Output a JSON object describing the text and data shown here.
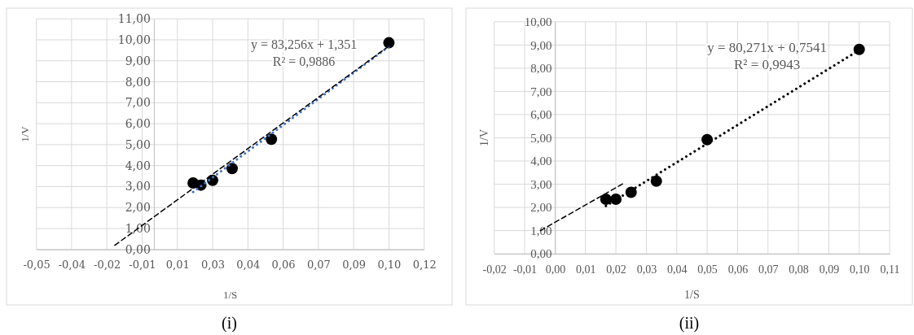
{
  "chart_data": [
    {
      "type": "scatter",
      "title": "(i)",
      "xlabel": "1/S",
      "ylabel": "1/V",
      "annotations": [
        "y = 83,256x + 1,351",
        "R² = 0,9886"
      ],
      "grid": true,
      "xlim": [
        -0.05,
        0.115
      ],
      "xticks": [
        {
          "value": -0.05,
          "label": "-0,05"
        },
        {
          "value": -0.035,
          "label": "-0,04"
        },
        {
          "value": -0.02,
          "label": "-0,02"
        },
        {
          "value": -0.005,
          "label": "-0,01"
        },
        {
          "value": 0.01,
          "label": "0,01"
        },
        {
          "value": 0.025,
          "label": "0,03"
        },
        {
          "value": 0.04,
          "label": "0,04"
        },
        {
          "value": 0.055,
          "label": "0,06"
        },
        {
          "value": 0.07,
          "label": "0,07"
        },
        {
          "value": 0.085,
          "label": "0,09"
        },
        {
          "value": 0.1,
          "label": "0,10"
        },
        {
          "value": 0.115,
          "label": "0,12"
        }
      ],
      "ylim": [
        0,
        11
      ],
      "yticks": [
        {
          "value": 0,
          "label": "0,00"
        },
        {
          "value": 1,
          "label": "1,00"
        },
        {
          "value": 2,
          "label": "2,00"
        },
        {
          "value": 3,
          "label": "3,00"
        },
        {
          "value": 4,
          "label": "4,00"
        },
        {
          "value": 5,
          "label": "5,00"
        },
        {
          "value": 6,
          "label": "6,00"
        },
        {
          "value": 7,
          "label": "7,00"
        },
        {
          "value": 8,
          "label": "8,00"
        },
        {
          "value": 9,
          "label": "9,00"
        },
        {
          "value": 10,
          "label": "10,00"
        },
        {
          "value": 11,
          "label": "11,00"
        }
      ],
      "series": [
        {
          "color": "#000000",
          "marker": "circle",
          "x": [
            0.0167,
            0.02,
            0.025,
            0.0333,
            0.05,
            0.1
          ],
          "values": [
            3.17,
            3.07,
            3.3,
            3.86,
            5.26,
            9.86
          ]
        },
        {
          "type": "line",
          "color": "#4472c4",
          "line_style": "dotted",
          "x": [
            0.0167,
            0.1
          ],
          "values": [
            2.74,
            9.68
          ]
        },
        {
          "type": "line",
          "color": "#000000",
          "line_style": "dashed",
          "x": [
            -0.0166,
            0.1
          ],
          "values": [
            0.2,
            9.7
          ]
        }
      ]
    },
    {
      "type": "scatter",
      "title": "(ii)",
      "xlabel": "1/S",
      "ylabel": "1/V",
      "annotations": [
        "y = 80,271x + 0,7541",
        "R² = 0,9943"
      ],
      "grid": true,
      "xlim": [
        -0.02,
        0.11
      ],
      "xticks": [
        {
          "value": -0.02,
          "label": "-0,02"
        },
        {
          "value": -0.01,
          "label": "-0,01"
        },
        {
          "value": 0,
          "label": "0,00"
        },
        {
          "value": 0.01,
          "label": "0,01"
        },
        {
          "value": 0.02,
          "label": "0,02"
        },
        {
          "value": 0.03,
          "label": "0,03"
        },
        {
          "value": 0.04,
          "label": "0,04"
        },
        {
          "value": 0.05,
          "label": "0,05"
        },
        {
          "value": 0.06,
          "label": "0,06"
        },
        {
          "value": 0.07,
          "label": "0,07"
        },
        {
          "value": 0.08,
          "label": "0,08"
        },
        {
          "value": 0.09,
          "label": "0,09"
        },
        {
          "value": 0.1,
          "label": "0,10"
        },
        {
          "value": 0.11,
          "label": "0,11"
        }
      ],
      "ylim": [
        0,
        10
      ],
      "yticks": [
        {
          "value": 0,
          "label": "0,00"
        },
        {
          "value": 1,
          "label": "1,00"
        },
        {
          "value": 2,
          "label": "2,00"
        },
        {
          "value": 3,
          "label": "3,00"
        },
        {
          "value": 4,
          "label": "4,00"
        },
        {
          "value": 5,
          "label": "5,00"
        },
        {
          "value": 6,
          "label": "6,00"
        },
        {
          "value": 7,
          "label": "7,00"
        },
        {
          "value": 8,
          "label": "8,00"
        },
        {
          "value": 9,
          "label": "9,00"
        },
        {
          "value": 10,
          "label": "10,00"
        }
      ],
      "series": [
        {
          "color": "#000000",
          "marker": "circle",
          "x": [
            0.0167,
            0.02,
            0.025,
            0.0333,
            0.05,
            0.1
          ],
          "values": [
            2.35,
            2.35,
            2.65,
            3.13,
            4.92,
            8.81
          ]
        },
        {
          "type": "line",
          "color": "#000000",
          "line_style": "dotted",
          "x": [
            0.0167,
            0.1
          ],
          "values": [
            2.06,
            8.78
          ]
        },
        {
          "type": "line",
          "color": "#000000",
          "line_style": "dashed",
          "x": [
            -0.0048,
            0.023
          ],
          "values": [
            1.0,
            3.07
          ]
        }
      ]
    }
  ]
}
